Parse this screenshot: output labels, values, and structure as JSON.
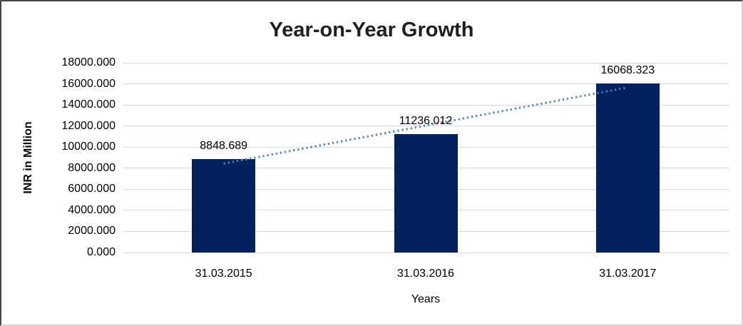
{
  "chart_data": {
    "type": "bar",
    "title": "Year-on-Year Growth",
    "categories": [
      "31.03.2015",
      "31.03.2016",
      "31.03.2017"
    ],
    "values": [
      8848.689,
      11236.012,
      16068.323
    ],
    "data_labels": [
      "8848.689",
      "11236.012",
      "16068.323"
    ],
    "xlabel": "Years",
    "ylabel": "INR in Million",
    "ylim": [
      0,
      18000
    ],
    "ytick_step": 2000,
    "ytick_labels": [
      "0.000",
      "2000.000",
      "4000.000",
      "6000.000",
      "8000.000",
      "10000.000",
      "12000.000",
      "14000.000",
      "16000.000",
      "18000.000"
    ],
    "grid": true,
    "legend": "none",
    "trendline": {
      "type": "linear",
      "style": "dotted"
    },
    "colors": {
      "bar": "#02215f",
      "trendline": "#4e82c4",
      "gridline": "#d9d9d9",
      "text": "#000000",
      "title": "#1f1f1f"
    }
  }
}
